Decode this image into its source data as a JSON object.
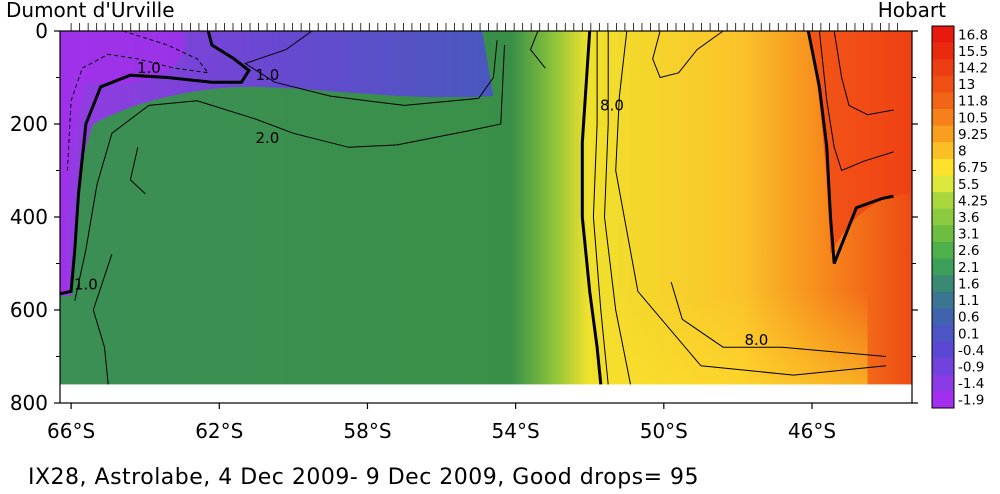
{
  "chart_data": {
    "type": "heatmap",
    "title": "",
    "left_station": "Dumont d'Urville",
    "right_station": "Hobart",
    "caption": "IX28, Astrolabe,  4 Dec 2009- 9 Dec 2009, Good drops= 95",
    "xlabel": "",
    "ylabel": "",
    "x_ticks": [
      "66°S",
      "62°S",
      "58°S",
      "54°S",
      "50°S",
      "46°S"
    ],
    "x_tick_values": [
      -66,
      -62,
      -58,
      -54,
      -50,
      -46
    ],
    "xlim": [
      -66.3,
      -43.3
    ],
    "y_ticks": [
      0,
      200,
      400,
      600,
      800
    ],
    "ylim": [
      800,
      0
    ],
    "data_max_depth": 760,
    "colorbar_ticks": [
      "16.8",
      "15.5",
      "14.2",
      "13",
      "11.8",
      "10.5",
      "9.25",
      "8",
      "6.75",
      "5.5",
      "4.25",
      "3.6",
      "3.1",
      "2.6",
      "2.1",
      "1.6",
      "1.1",
      "0.6",
      "0.1",
      "-0.4",
      "-0.9",
      "-1.4",
      "-1.9"
    ],
    "colorbar_colors": [
      "#e8190f",
      "#ea2a10",
      "#ed3d12",
      "#f04f14",
      "#f36516",
      "#f6811a",
      "#f89f20",
      "#fbbf26",
      "#fde12c",
      "#dde83c",
      "#a9d83e",
      "#8bcb3f",
      "#6dbe40",
      "#4fb04a",
      "#3c9f5a",
      "#3a8a73",
      "#3a7591",
      "#3f64ad",
      "#4b55c4",
      "#5a48d4",
      "#7142de",
      "#8b3ae6",
      "#a22eee"
    ],
    "contour_labels": [
      {
        "text": "1.0",
        "lon": -63.9,
        "depth": 80
      },
      {
        "text": "1.0",
        "lon": -60.7,
        "depth": 95
      },
      {
        "text": "2.0",
        "lon": -60.7,
        "depth": 230
      },
      {
        "text": "1.0",
        "lon": -65.6,
        "depth": 545
      },
      {
        "text": "8.0",
        "lon": -51.4,
        "depth": 160
      },
      {
        "text": "8.0",
        "lon": -47.5,
        "depth": 665
      }
    ],
    "colors": {
      "cold": "#8a3ae6",
      "subpolar": "#3f8f4a",
      "front": "#a8d23c",
      "warm": "#fde12c",
      "hot": "#ee3a12"
    }
  }
}
